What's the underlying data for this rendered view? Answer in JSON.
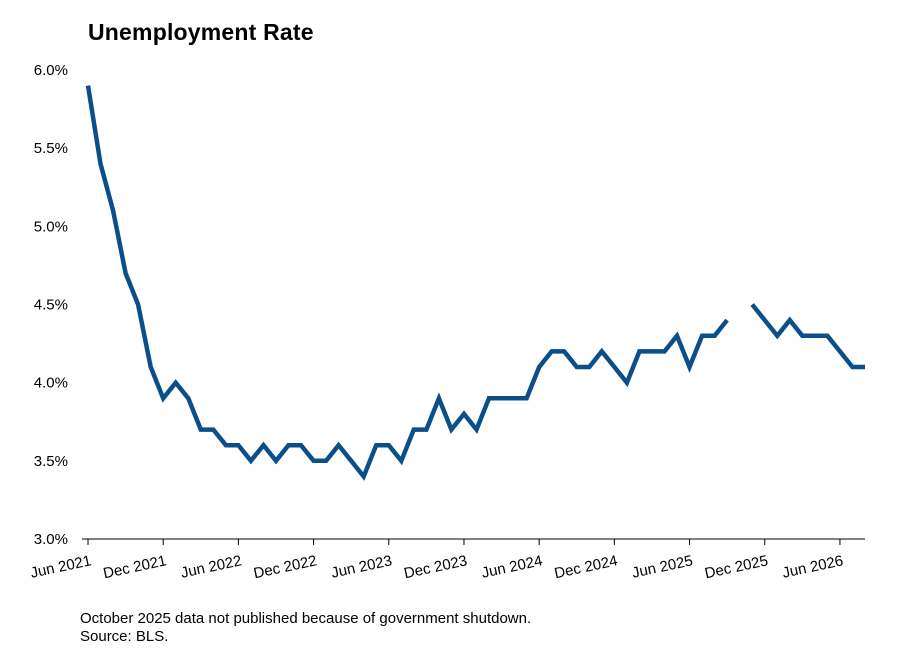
{
  "chart_data": {
    "type": "line",
    "title": "Unemployment Rate",
    "xlabel": "",
    "ylabel": "",
    "ylim": [
      3.0,
      6.0
    ],
    "yticks": [
      "3.0%",
      "3.5%",
      "4.0%",
      "4.5%",
      "5.0%",
      "5.5%",
      "6.0%"
    ],
    "xticks": [
      "Jun 2021",
      "Dec 2021",
      "Jun 2022",
      "Dec 2022",
      "Jun 2023",
      "Dec 2023",
      "Jun 2024",
      "Dec 2024",
      "Jun 2025",
      "Dec 2025",
      "Jun 2026"
    ],
    "x_range": [
      "2021-06",
      "2026-08"
    ],
    "grid": false,
    "series_color": "#0b4f8a",
    "series": [
      {
        "x": [
          "2021-06",
          "2021-07",
          "2021-08",
          "2021-09",
          "2021-10",
          "2021-11",
          "2021-12",
          "2022-01",
          "2022-02",
          "2022-03",
          "2022-04",
          "2022-05",
          "2022-06",
          "2022-07",
          "2022-08",
          "2022-09",
          "2022-10",
          "2022-11",
          "2022-12",
          "2023-01",
          "2023-02",
          "2023-03",
          "2023-04",
          "2023-05",
          "2023-06",
          "2023-07",
          "2023-08",
          "2023-09",
          "2023-10",
          "2023-11",
          "2023-12",
          "2024-01",
          "2024-02",
          "2024-03",
          "2024-04",
          "2024-05",
          "2024-06",
          "2024-07",
          "2024-08",
          "2024-09",
          "2024-10",
          "2024-11",
          "2024-12",
          "2025-01",
          "2025-02",
          "2025-03",
          "2025-04",
          "2025-05",
          "2025-06",
          "2025-07",
          "2025-08",
          "2025-09",
          "2025-10",
          "2025-11",
          "2025-12",
          "2026-01",
          "2026-02",
          "2026-03",
          "2026-04",
          "2026-05",
          "2026-06",
          "2026-07",
          "2026-08"
        ],
        "values": [
          5.9,
          5.4,
          5.1,
          4.7,
          4.5,
          4.1,
          3.9,
          4.0,
          3.9,
          3.7,
          3.7,
          3.6,
          3.6,
          3.5,
          3.6,
          3.5,
          3.6,
          3.6,
          3.5,
          3.5,
          3.6,
          3.5,
          3.4,
          3.6,
          3.6,
          3.5,
          3.7,
          3.7,
          3.9,
          3.7,
          3.8,
          3.7,
          3.9,
          3.9,
          3.9,
          3.9,
          4.1,
          4.2,
          4.2,
          4.1,
          4.1,
          4.2,
          4.1,
          4.0,
          4.2,
          4.2,
          4.2,
          4.3,
          4.1,
          4.3,
          4.3,
          4.4,
          null,
          4.5,
          4.4,
          4.3,
          4.4,
          4.3,
          4.3,
          4.3,
          4.2,
          4.1,
          4.1
        ]
      }
    ]
  },
  "notes": {
    "line1": "October 2025 data not published because of government shutdown.",
    "line2": "Source: BLS."
  }
}
